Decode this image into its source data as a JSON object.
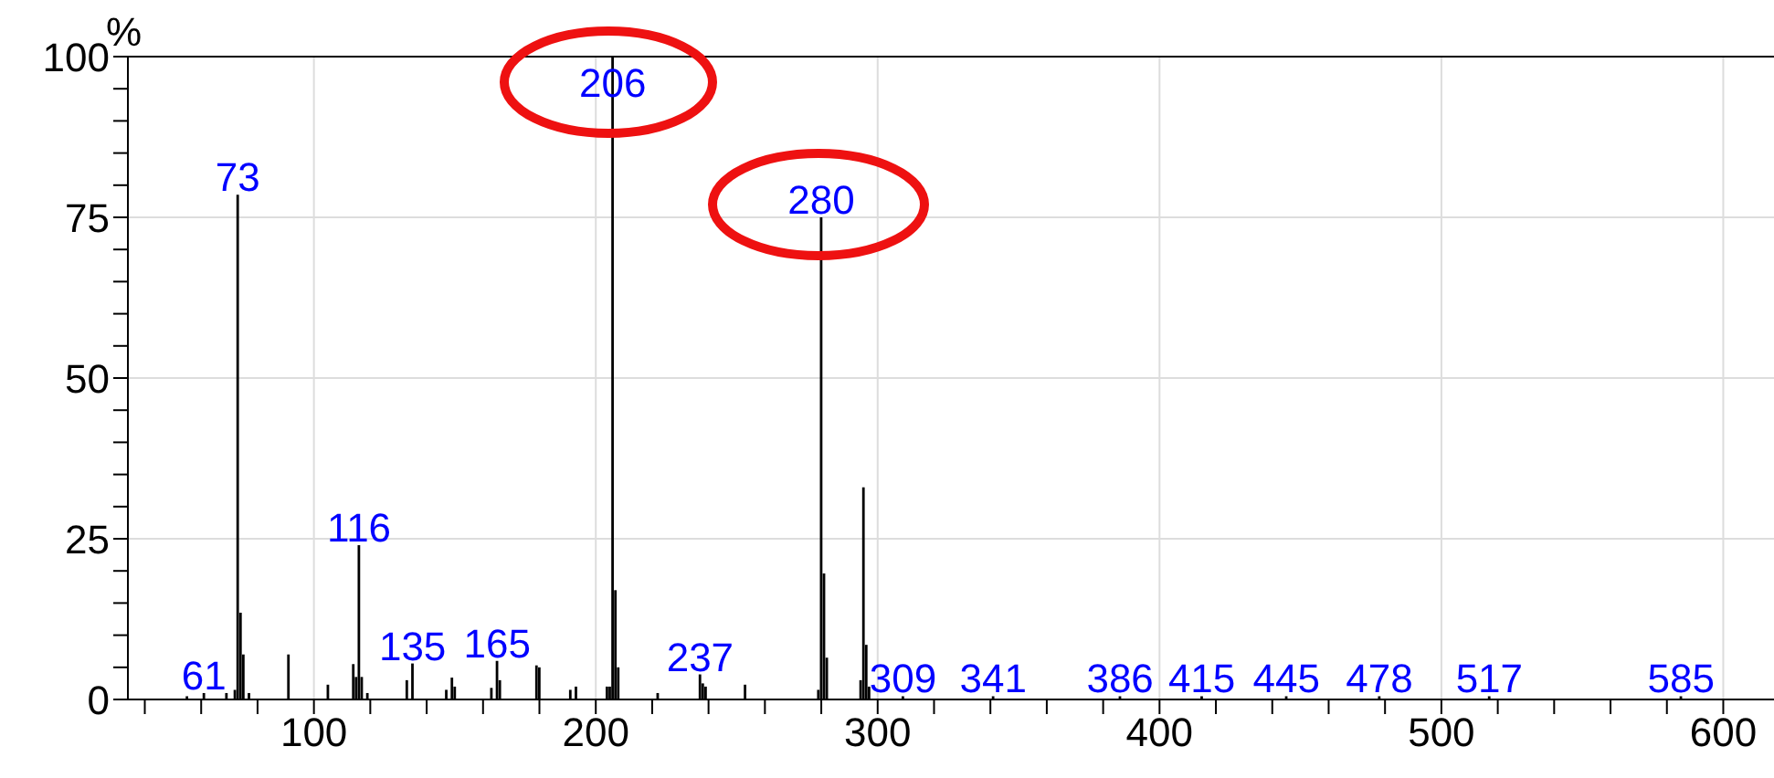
{
  "chart_data": {
    "type": "bar",
    "ylabel": "%",
    "color": "#000000",
    "x": [
      55,
      61,
      69,
      72,
      73,
      74,
      75,
      77,
      91,
      105,
      114,
      115,
      116,
      117,
      119,
      133,
      135,
      147,
      149,
      150,
      163,
      165,
      166,
      179,
      180,
      191,
      193,
      204,
      205,
      206,
      207,
      208,
      222,
      237,
      238,
      239,
      253,
      279,
      280,
      281,
      282,
      294,
      295,
      296,
      297,
      309,
      341,
      386,
      415,
      445,
      478,
      517,
      585
    ],
    "values": [
      0.5,
      1,
      1,
      1.5,
      78.5,
      13.5,
      7,
      1,
      7,
      2.3,
      5.5,
      3.5,
      24,
      3.5,
      1,
      3,
      5.6,
      1.5,
      3.4,
      2,
      1.8,
      6,
      3,
      5.3,
      5,
      1.5,
      2,
      2,
      2,
      100,
      17,
      5,
      1,
      3.9,
      2.5,
      2,
      2.3,
      1.5,
      75,
      19.6,
      6.5,
      3,
      33,
      8.5,
      2,
      0.5,
      0.5,
      0.5,
      0.5,
      0.5,
      0.5,
      0.5,
      0.5
    ],
    "xlim": [
      34,
      618
    ],
    "xticks": [
      {
        "value": 40,
        "label": null
      },
      {
        "value": 60,
        "label": null
      },
      {
        "value": 80,
        "label": null
      },
      100,
      {
        "value": 120,
        "label": null
      },
      {
        "value": 140,
        "label": null
      },
      {
        "value": 160,
        "label": null
      },
      {
        "value": 180,
        "label": null
      },
      200,
      {
        "value": 220,
        "label": null
      },
      {
        "value": 240,
        "label": null
      },
      {
        "value": 260,
        "label": null
      },
      {
        "value": 280,
        "label": null
      },
      300,
      {
        "value": 320,
        "label": null
      },
      {
        "value": 340,
        "label": null
      },
      {
        "value": 360,
        "label": null
      },
      {
        "value": 380,
        "label": null
      },
      400,
      {
        "value": 420,
        "label": null
      },
      {
        "value": 440,
        "label": null
      },
      {
        "value": 460,
        "label": null
      },
      {
        "value": 480,
        "label": null
      },
      500,
      {
        "value": 520,
        "label": null
      },
      {
        "value": 540,
        "label": null
      },
      {
        "value": 560,
        "label": null
      },
      {
        "value": 580,
        "label": null
      },
      600
    ],
    "ylim": [
      0,
      100
    ],
    "yticks": [
      0,
      {
        "value": 5,
        "label": null
      },
      {
        "value": 10,
        "label": null
      },
      {
        "value": 15,
        "label": null
      },
      {
        "value": 20,
        "label": null
      },
      25,
      {
        "value": 30,
        "label": null
      },
      {
        "value": 35,
        "label": null
      },
      {
        "value": 40,
        "label": null
      },
      {
        "value": 45,
        "label": null
      },
      50,
      {
        "value": 55,
        "label": null
      },
      {
        "value": 60,
        "label": null
      },
      {
        "value": 65,
        "label": null
      },
      {
        "value": 70,
        "label": null
      },
      75,
      {
        "value": 80,
        "label": null
      },
      {
        "value": 85,
        "label": null
      },
      {
        "value": 90,
        "label": null
      },
      {
        "value": 95,
        "label": null
      },
      100
    ],
    "grid": true,
    "annotations": [
      {
        "text": "61",
        "x": 61,
        "y": 1
      },
      {
        "text": "73",
        "x": 73,
        "y": 78.5
      },
      {
        "text": "116",
        "x": 116,
        "y": 24
      },
      {
        "text": "135",
        "x": 135,
        "y": 5.6
      },
      {
        "text": "165",
        "x": 165,
        "y": 6
      },
      {
        "text": "206",
        "x": 206,
        "y": 100
      },
      {
        "text": "237",
        "x": 237,
        "y": 3.9
      },
      {
        "text": "280",
        "x": 280,
        "y": 75
      },
      {
        "text": "309",
        "x": 309,
        "y": 0.5
      },
      {
        "text": "341",
        "x": 341,
        "y": 0.5
      },
      {
        "text": "386",
        "x": 386,
        "y": 0.5
      },
      {
        "text": "415",
        "x": 415,
        "y": 0.5
      },
      {
        "text": "445",
        "x": 445,
        "y": 0.5
      },
      {
        "text": "478",
        "x": 478,
        "y": 0.5
      },
      {
        "text": "517",
        "x": 517,
        "y": 0.5
      },
      {
        "text": "585",
        "x": 585,
        "y": 0.5
      }
    ]
  }
}
